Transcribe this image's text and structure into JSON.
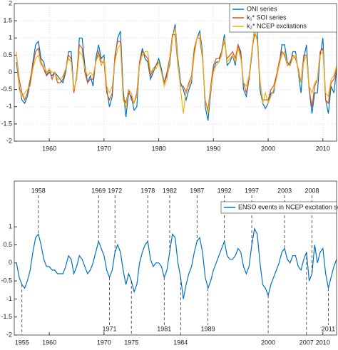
{
  "chart_data": [
    {
      "type": "line",
      "x": [
        1954,
        1954.5,
        1955,
        1955.5,
        1956,
        1956.5,
        1957,
        1957.5,
        1958,
        1958.5,
        1959,
        1959.5,
        1960,
        1960.5,
        1961,
        1961.5,
        1962,
        1962.5,
        1963,
        1963.5,
        1964,
        1964.5,
        1965,
        1965.5,
        1966,
        1966.5,
        1967,
        1967.5,
        1968,
        1968.5,
        1969,
        1969.5,
        1970,
        1970.5,
        1971,
        1971.5,
        1972,
        1972.5,
        1973,
        1973.5,
        1974,
        1974.5,
        1975,
        1975.5,
        1976,
        1976.5,
        1977,
        1977.5,
        1978,
        1978.5,
        1979,
        1979.5,
        1980,
        1980.5,
        1981,
        1981.5,
        1982,
        1982.5,
        1983,
        1983.5,
        1984,
        1984.5,
        1985,
        1985.5,
        1986,
        1986.5,
        1987,
        1987.5,
        1988,
        1988.5,
        1989,
        1989.5,
        1990,
        1990.5,
        1991,
        1991.5,
        1992,
        1992.5,
        1993,
        1993.5,
        1994,
        1994.5,
        1995,
        1995.5,
        1996,
        1996.5,
        1997,
        1997.5,
        1998,
        1998.5,
        1999,
        1999.5,
        2000,
        2000.5,
        2001,
        2001.5,
        2002,
        2002.5,
        2003,
        2003.5,
        2004,
        2004.5,
        2005,
        2005.5,
        2006,
        2006.5,
        2007,
        2007.5,
        2008,
        2008.5,
        2009,
        2009.5,
        2010,
        2010.5,
        2011,
        2011.5,
        2012,
        2012.5
      ],
      "series": [
        {
          "name": "ONI series",
          "color": "#0072bd",
          "values": [
            0.3,
            -0.4,
            -0.8,
            -0.9,
            -0.7,
            -0.3,
            0.3,
            0.8,
            0.9,
            0.4,
            0.3,
            -0.1,
            0.0,
            -0.1,
            0.0,
            -0.1,
            -0.2,
            -0.3,
            0.0,
            0.6,
            0.6,
            -0.5,
            -0.2,
            1.0,
            1.0,
            0.2,
            -0.3,
            -0.1,
            -0.4,
            0.4,
            0.8,
            0.4,
            0.5,
            -0.5,
            -1.0,
            -0.7,
            0.4,
            1.0,
            1.2,
            -0.5,
            -1.3,
            -0.6,
            -0.7,
            -1.1,
            -1.0,
            0.3,
            0.7,
            0.4,
            0.3,
            -0.2,
            0.0,
            0.2,
            0.4,
            0.1,
            -0.3,
            -0.1,
            0.2,
            1.0,
            1.4,
            0.4,
            -0.3,
            -0.5,
            -0.8,
            -0.5,
            -0.3,
            0.6,
            1.0,
            1.2,
            0.6,
            -1.0,
            -1.4,
            -0.6,
            0.1,
            0.3,
            0.3,
            0.6,
            1.1,
            0.2,
            0.3,
            0.5,
            0.2,
            0.8,
            0.6,
            -0.5,
            -0.7,
            -0.2,
            0.5,
            1.3,
            1.2,
            -0.5,
            -0.9,
            -1.05,
            -0.9,
            -0.6,
            -0.6,
            -0.1,
            0.2,
            0.8,
            0.8,
            0.3,
            0.2,
            0.6,
            0.6,
            0.0,
            -0.6,
            0.4,
            0.8,
            -0.5,
            -1.2,
            -0.6,
            -0.6,
            0.5,
            1.0,
            -0.8,
            -1.2,
            -0.4,
            -0.6,
            0.1
          ]
        },
        {
          "name": "k₁* SOI series",
          "color": "#d95319",
          "values": [
            0.5,
            -0.2,
            -0.6,
            -0.8,
            -0.6,
            -0.2,
            0.2,
            0.6,
            0.7,
            0.3,
            0.1,
            -0.1,
            0.1,
            -0.2,
            0.0,
            -0.3,
            -0.3,
            -0.2,
            0.1,
            0.5,
            0.4,
            -0.6,
            -0.1,
            0.8,
            0.7,
            0.0,
            -0.3,
            -0.2,
            -0.2,
            0.3,
            0.6,
            0.3,
            0.3,
            -0.6,
            -0.8,
            -0.6,
            0.5,
            0.9,
            0.9,
            -0.7,
            -0.9,
            -0.5,
            -0.8,
            -0.9,
            -0.6,
            0.3,
            0.6,
            0.5,
            0.4,
            -0.1,
            0.1,
            0.2,
            0.3,
            0.0,
            -0.3,
            0.0,
            0.4,
            1.1,
            1.1,
            0.2,
            -0.4,
            -0.4,
            -0.6,
            -0.3,
            -0.1,
            0.7,
            1.0,
            1.0,
            0.4,
            -0.8,
            -1.1,
            -0.4,
            0.2,
            0.4,
            0.4,
            0.6,
            0.9,
            0.4,
            0.5,
            0.6,
            0.4,
            0.8,
            0.5,
            -0.3,
            -0.6,
            -0.2,
            0.6,
            1.1,
            1.0,
            -0.3,
            -0.8,
            -0.8,
            -0.8,
            -0.5,
            -0.4,
            -0.1,
            0.3,
            0.6,
            0.5,
            0.2,
            0.3,
            0.5,
            0.4,
            0.1,
            -0.3,
            0.5,
            0.5,
            -0.5,
            -1.0,
            -0.4,
            -0.2,
            0.6,
            0.7,
            -0.8,
            -0.9,
            -0.3,
            -0.2,
            0.1
          ]
        },
        {
          "name": "k₂* NCEP excitations",
          "color": "#edb120",
          "values": [
            0.6,
            -0.5,
            -0.7,
            -0.6,
            -0.5,
            -0.4,
            0.1,
            0.4,
            0.5,
            0.2,
            0.2,
            0.0,
            0.1,
            0.0,
            0.0,
            -0.2,
            -0.2,
            -0.1,
            0.1,
            0.4,
            0.3,
            -0.5,
            -0.2,
            0.6,
            0.5,
            0.1,
            -0.1,
            0.0,
            -0.1,
            0.3,
            0.5,
            0.2,
            0.4,
            -0.4,
            -0.6,
            -0.4,
            0.3,
            0.7,
            0.8,
            -0.8,
            -1.0,
            -0.5,
            -0.6,
            -0.9,
            -0.7,
            0.2,
            0.5,
            0.6,
            0.6,
            0.0,
            0.1,
            0.1,
            0.3,
            0.0,
            -0.4,
            -0.2,
            0.3,
            1.0,
            1.3,
            0.3,
            -0.5,
            -1.2,
            -0.5,
            -0.4,
            -0.2,
            0.5,
            1.0,
            1.1,
            0.5,
            -0.8,
            -1.2,
            -0.5,
            0.0,
            0.2,
            0.3,
            0.5,
            1.0,
            0.3,
            0.4,
            0.5,
            0.3,
            0.7,
            0.4,
            -0.3,
            -0.4,
            -0.1,
            0.6,
            1.3,
            0.9,
            -0.2,
            -0.9,
            -0.6,
            -0.9,
            -0.7,
            -0.5,
            -0.2,
            0.2,
            0.5,
            0.6,
            0.2,
            0.2,
            0.4,
            0.5,
            0.0,
            -0.3,
            0.3,
            0.5,
            -0.4,
            -0.6,
            -0.3,
            -0.2,
            0.5,
            0.6,
            -0.6,
            -0.7,
            -0.2,
            -0.1,
            0.2
          ]
        }
      ],
      "xlim": [
        1953.6,
        2012.5
      ],
      "xticks": [
        1960,
        1970,
        1980,
        1990,
        2000,
        2010
      ],
      "ylim": [
        -2,
        2
      ],
      "yticks": [
        -2,
        -1.5,
        -1,
        -0.5,
        0,
        0.5,
        1,
        1.5,
        2
      ],
      "grid": true,
      "legend": "upper right"
    },
    {
      "type": "line",
      "x": [
        1954,
        1954.5,
        1955,
        1955.5,
        1956,
        1956.5,
        1957,
        1957.5,
        1958,
        1958.5,
        1959,
        1959.5,
        1960,
        1960.5,
        1961,
        1961.5,
        1962,
        1962.5,
        1963,
        1963.5,
        1964,
        1964.5,
        1965,
        1965.5,
        1966,
        1966.5,
        1967,
        1967.5,
        1968,
        1968.5,
        1969,
        1969.5,
        1970,
        1970.5,
        1971,
        1971.5,
        1972,
        1972.5,
        1973,
        1973.5,
        1974,
        1974.5,
        1975,
        1975.5,
        1976,
        1976.5,
        1977,
        1977.5,
        1978,
        1978.5,
        1979,
        1979.5,
        1980,
        1980.5,
        1981,
        1981.5,
        1982,
        1982.5,
        1983,
        1983.5,
        1984,
        1984.5,
        1985,
        1985.5,
        1986,
        1986.5,
        1987,
        1987.5,
        1988,
        1988.5,
        1989,
        1989.5,
        1990,
        1990.5,
        1991,
        1991.5,
        1992,
        1992.5,
        1993,
        1993.5,
        1994,
        1994.5,
        1995,
        1995.5,
        1996,
        1996.5,
        1997,
        1997.5,
        1998,
        1998.5,
        1999,
        1999.5,
        2000,
        2000.5,
        2001,
        2001.5,
        2002,
        2002.5,
        2003,
        2003.5,
        2004,
        2004.5,
        2005,
        2005.5,
        2006,
        2006.5,
        2007,
        2007.5,
        2008,
        2008.5,
        2009,
        2009.5,
        2010,
        2010.5,
        2011,
        2011.5,
        2012,
        2012.5
      ],
      "series": [
        {
          "name": "ENSO events in NCEP excitation series",
          "color": "#0072bd",
          "values": [
            0.0,
            -0.4,
            -0.6,
            -0.7,
            -0.5,
            -0.2,
            0.3,
            0.7,
            0.8,
            0.5,
            0.1,
            -0.1,
            -0.1,
            -0.2,
            -0.2,
            -0.3,
            -0.3,
            -0.3,
            -0.1,
            0.2,
            0.1,
            -0.3,
            -0.1,
            0.2,
            0.1,
            -0.1,
            -0.3,
            -0.2,
            0.0,
            0.3,
            0.6,
            0.4,
            0.2,
            -0.2,
            -0.4,
            -0.2,
            0.3,
            0.5,
            0.3,
            -0.2,
            -0.6,
            -0.3,
            -0.5,
            -0.8,
            -0.6,
            0.0,
            0.3,
            0.5,
            0.6,
            0.1,
            -0.1,
            0.0,
            0.0,
            -0.1,
            -0.4,
            -0.2,
            0.3,
            0.8,
            0.7,
            0.0,
            -0.4,
            -1.0,
            -0.6,
            -0.3,
            -0.1,
            0.3,
            0.6,
            0.7,
            0.3,
            -0.4,
            -0.7,
            -0.5,
            -0.2,
            0.0,
            0.2,
            0.4,
            0.6,
            0.2,
            0.1,
            0.1,
            0.2,
            0.4,
            0.3,
            -0.1,
            -0.3,
            -0.1,
            0.5,
            0.95,
            0.8,
            0.0,
            -0.6,
            -0.7,
            -0.9,
            -0.6,
            -0.4,
            -0.2,
            0.0,
            0.3,
            0.4,
            0.1,
            0.0,
            0.2,
            0.2,
            -0.1,
            -0.2,
            0.1,
            0.3,
            -0.5,
            -0.3,
            0.5,
            0.0,
            0.3,
            0.4,
            -0.3,
            -0.7,
            -0.4,
            -0.1,
            0.1
          ]
        }
      ],
      "xlim": [
        1953.6,
        2012.5
      ],
      "xticks": [
        1960,
        1970,
        2010
      ],
      "ylim": [
        -2,
        2.27
      ],
      "yticks": [
        -2,
        -1.5,
        -1,
        -0.5,
        0,
        0.5,
        1
      ],
      "grid": false,
      "legend": "upper right",
      "peak_years": [
        1958,
        1969,
        1972,
        1978,
        1982,
        1987,
        1992,
        1997,
        2003,
        2008
      ],
      "trough_years_inner": [
        1971,
        1981,
        1989,
        2011
      ],
      "trough_years_outer": [
        1955,
        1975,
        1984,
        2000,
        2007
      ]
    }
  ]
}
